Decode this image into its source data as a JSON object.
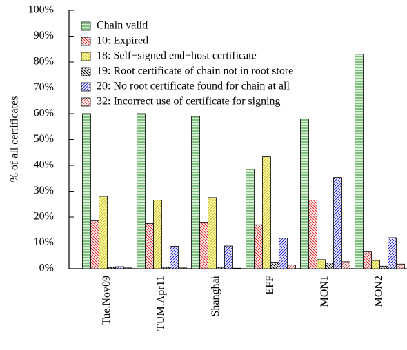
{
  "chart_data": {
    "type": "bar",
    "ylabel": "% of all certificates",
    "categories": [
      "Tue.Nov09",
      "TUM.Apr11",
      "Shanghai",
      "EFF",
      "MON1",
      "MON2"
    ],
    "series": [
      {
        "name": "Chain valid",
        "color": "#2e8b2e",
        "fill": "#d4efd4",
        "hatch": "horizontal",
        "values": [
          60,
          60,
          59,
          38.5,
          58,
          83
        ]
      },
      {
        "name": "10: Expired",
        "color": "#e02020",
        "fill": "#ffffff",
        "hatch": "diagonal-down",
        "values": [
          18.5,
          17.5,
          18,
          17,
          26.5,
          6.5
        ]
      },
      {
        "name": "18: Self−signed end−host certificate",
        "color": "#c8b830",
        "fill": "#ffffa8",
        "hatch": "diagonal-up",
        "values": [
          28,
          26.5,
          27.5,
          43.3,
          3.5,
          3.2
        ]
      },
      {
        "name": "19: Root certificate of chain not in root store",
        "color": "#000000",
        "fill": "#ffffff",
        "hatch": "diagonal-down",
        "values": [
          0.5,
          0.5,
          0.5,
          2.5,
          2.2,
          1
        ]
      },
      {
        "name": "20: No root certificate found for chain at all",
        "color": "#2020d0",
        "fill": "#ffffff",
        "hatch": "diagonal-up",
        "values": [
          0.8,
          8.7,
          8.8,
          11.8,
          35.3,
          12
        ]
      },
      {
        "name": "32: Incorrect use of certificate for signing",
        "color": "#d05050",
        "fill": "#ffffff",
        "hatch": "diagonal-up",
        "values": [
          0.3,
          0.3,
          0.2,
          1.5,
          2.7,
          1.8
        ]
      }
    ],
    "ylim": [
      0,
      100
    ],
    "yticks": [
      {
        "value": 0,
        "label": "0%"
      },
      {
        "value": 10,
        "label": "10%"
      },
      {
        "value": 20,
        "label": "20%"
      },
      {
        "value": 30,
        "label": "30%"
      },
      {
        "value": 40,
        "label": "40%"
      },
      {
        "value": 50,
        "label": "50%"
      },
      {
        "value": 60,
        "label": "60%"
      },
      {
        "value": 70,
        "label": "70%"
      },
      {
        "value": 80,
        "label": "80%"
      },
      {
        "value": 90,
        "label": "90%"
      },
      {
        "value": 100,
        "label": "100%"
      }
    ],
    "legend": "upper left",
    "grid": false
  }
}
